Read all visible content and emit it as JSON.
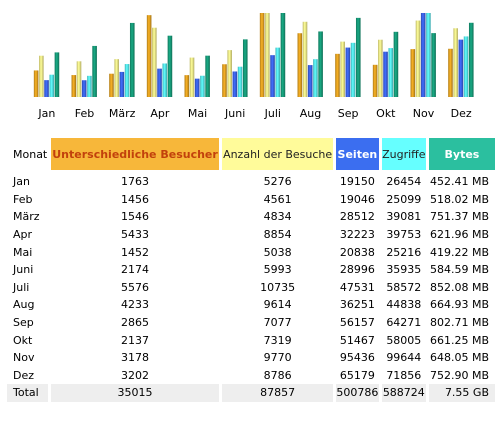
{
  "chart_data": {
    "type": "bar",
    "categories": [
      "Jan",
      "Feb",
      "März",
      "Apr",
      "Mai",
      "Juni",
      "Juli",
      "Aug",
      "Sep",
      "Okt",
      "Nov",
      "Dez"
    ],
    "series": [
      {
        "name": "Unterschiedliche Besucher",
        "color": "#e0a020",
        "values": [
          1763,
          1456,
          1546,
          5433,
          1452,
          2174,
          5576,
          4233,
          2865,
          2137,
          3178,
          3202
        ]
      },
      {
        "name": "Anzahl der Besuche",
        "color": "#f6ee88",
        "values": [
          5276,
          4561,
          4834,
          8854,
          5038,
          5993,
          10735,
          9614,
          7077,
          7319,
          9770,
          8786
        ]
      },
      {
        "name": "Seiten",
        "color": "#3a62e6",
        "values": [
          19150,
          19046,
          28512,
          32223,
          20838,
          28996,
          47531,
          36251,
          56157,
          51467,
          95436,
          65179
        ]
      },
      {
        "name": "Zugriffe",
        "color": "#55e6ee",
        "values": [
          26454,
          25099,
          39081,
          39753,
          25216,
          35935,
          58572,
          44838,
          64271,
          58005,
          99644,
          71856
        ]
      },
      {
        "name": "Bytes",
        "color": "#169a78",
        "values": [
          452.41,
          518.02,
          751.37,
          621.96,
          419.22,
          584.59,
          852.08,
          664.93,
          802.71,
          661.25,
          648.05,
          752.9
        ]
      }
    ]
  },
  "table": {
    "headers": {
      "month": "Monat",
      "unique": "Unterschiedliche Besucher",
      "visits": "Anzahl der Besuche",
      "pages": "Seiten",
      "hits": "Zugriffe",
      "bytes": "Bytes"
    },
    "rows": [
      {
        "month": "Jan",
        "unique": "1763",
        "visits": "5276",
        "pages": "19150",
        "hits": "26454",
        "bytes": "452.41 MB"
      },
      {
        "month": "Feb",
        "unique": "1456",
        "visits": "4561",
        "pages": "19046",
        "hits": "25099",
        "bytes": "518.02 MB"
      },
      {
        "month": "März",
        "unique": "1546",
        "visits": "4834",
        "pages": "28512",
        "hits": "39081",
        "bytes": "751.37 MB"
      },
      {
        "month": "Apr",
        "unique": "5433",
        "visits": "8854",
        "pages": "32223",
        "hits": "39753",
        "bytes": "621.96 MB"
      },
      {
        "month": "Mai",
        "unique": "1452",
        "visits": "5038",
        "pages": "20838",
        "hits": "25216",
        "bytes": "419.22 MB"
      },
      {
        "month": "Juni",
        "unique": "2174",
        "visits": "5993",
        "pages": "28996",
        "hits": "35935",
        "bytes": "584.59 MB"
      },
      {
        "month": "Juli",
        "unique": "5576",
        "visits": "10735",
        "pages": "47531",
        "hits": "58572",
        "bytes": "852.08 MB"
      },
      {
        "month": "Aug",
        "unique": "4233",
        "visits": "9614",
        "pages": "36251",
        "hits": "44838",
        "bytes": "664.93 MB"
      },
      {
        "month": "Sep",
        "unique": "2865",
        "visits": "7077",
        "pages": "56157",
        "hits": "64271",
        "bytes": "802.71 MB"
      },
      {
        "month": "Okt",
        "unique": "2137",
        "visits": "7319",
        "pages": "51467",
        "hits": "58005",
        "bytes": "661.25 MB"
      },
      {
        "month": "Nov",
        "unique": "3178",
        "visits": "9770",
        "pages": "95436",
        "hits": "99644",
        "bytes": "648.05 MB"
      },
      {
        "month": "Dez",
        "unique": "3202",
        "visits": "8786",
        "pages": "65179",
        "hits": "71856",
        "bytes": "752.90 MB"
      }
    ],
    "total": {
      "month": "Total",
      "unique": "35015",
      "visits": "87857",
      "pages": "500786",
      "hits": "588724",
      "bytes": "7.55 GB"
    }
  }
}
